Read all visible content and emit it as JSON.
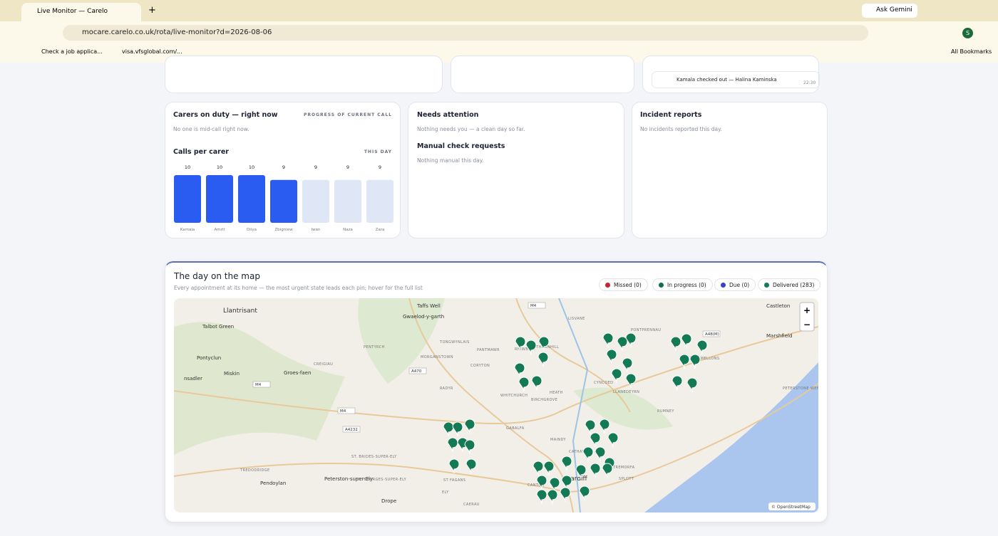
{
  "browser": {
    "tab_title": "Live Monitor — Carelo",
    "ask": "Ask Gemini",
    "url": "mocare.carelo.co.uk/rota/live-monitor?d=2026-08-06",
    "bookmarks": [
      "Check a job applica...",
      "visa.vfsglobal.com/..."
    ],
    "all_bookmarks": "All Bookmarks",
    "profile": "S"
  },
  "feed": {
    "text": "Kamala checked out — Halina Kaminska",
    "time": "22:30"
  },
  "carers": {
    "title": "Carers on duty — right now",
    "aside": "PROGRESS OF CURRENT CALL",
    "empty": "No one is mid-call right now.",
    "chart_data": {
      "type": "bar",
      "title": "Calls per carer",
      "aside": "THIS DAY",
      "categories": [
        "Kamala",
        "Amrit",
        "Diiya",
        "Zbigniew",
        "Iwan",
        "Naza",
        "Zara"
      ],
      "values": [
        10,
        10,
        10,
        9,
        9,
        9,
        9
      ],
      "colors": [
        "#2a5cf2",
        "#2a5cf2",
        "#2a5cf2",
        "#2a5cf2",
        "#dfe6f6",
        "#dfe6f6",
        "#dfe6f6"
      ]
    }
  },
  "attention": {
    "title": "Needs attention",
    "text": "Nothing needs you — a clean day so far.",
    "manual_title": "Manual check requests",
    "manual_text": "Nothing manual this day."
  },
  "incidents": {
    "title": "Incident reports",
    "text": "No incidents reported this day."
  },
  "map": {
    "title": "The day on the map",
    "subtitle": "Every appointment at its home — the most urgent state leads each pin; hover for the full list",
    "legend": [
      {
        "label": "Missed (0)",
        "color": "#c3262f"
      },
      {
        "label": "In progress (0)",
        "color": "#0f6e55"
      },
      {
        "label": "Due (0)",
        "color": "#3642c9"
      },
      {
        "label": "Delivered (283)",
        "color": "#137a55"
      }
    ],
    "zoom_in": "+",
    "zoom_out": "−",
    "attribution": "© OpenStreetMap",
    "towns": [
      "Llantrisant",
      "Taffs Well",
      "Gwaelod-y-garth",
      "Castleton",
      "Marshfield",
      "Talbot Green",
      "Pontyclun",
      "Miskin",
      "Groes-faen",
      "nsadler",
      "Peterston-super-Ely",
      "Pendoylan",
      "Drope",
      "Cardiff"
    ],
    "districts": [
      "THORNHILL",
      "LISVANE",
      "PONTPRENNAU",
      "PENTYRCH",
      "TONGWYNLAIS",
      "PANTMAWR",
      "RHIWBINA",
      "MORGANSTOWN",
      "CREIGIAU",
      "CORYTON",
      "RADYR",
      "WHITCHURCH",
      "BIRCHGROVE",
      "HEATH",
      "CYNCOED",
      "LLANEDEYRN",
      "OLD ST MELLONS",
      "PETERSTONE WENTLOOGE",
      "RUMNEY",
      "GABALFA",
      "MAINDY",
      "CATHAYS",
      "ST. BRIDES-SUPER-ELY",
      "ST. GEORGES-SUPER-ELY",
      "TREDODRIDGE",
      "ST FAGANS",
      "TREMORFA",
      "SPLOTT",
      "ELY",
      "CANTON",
      "CAERAU"
    ],
    "roads": [
      "M4",
      "A470",
      "M4",
      "A4232",
      "M4",
      "A48(M)"
    ]
  }
}
